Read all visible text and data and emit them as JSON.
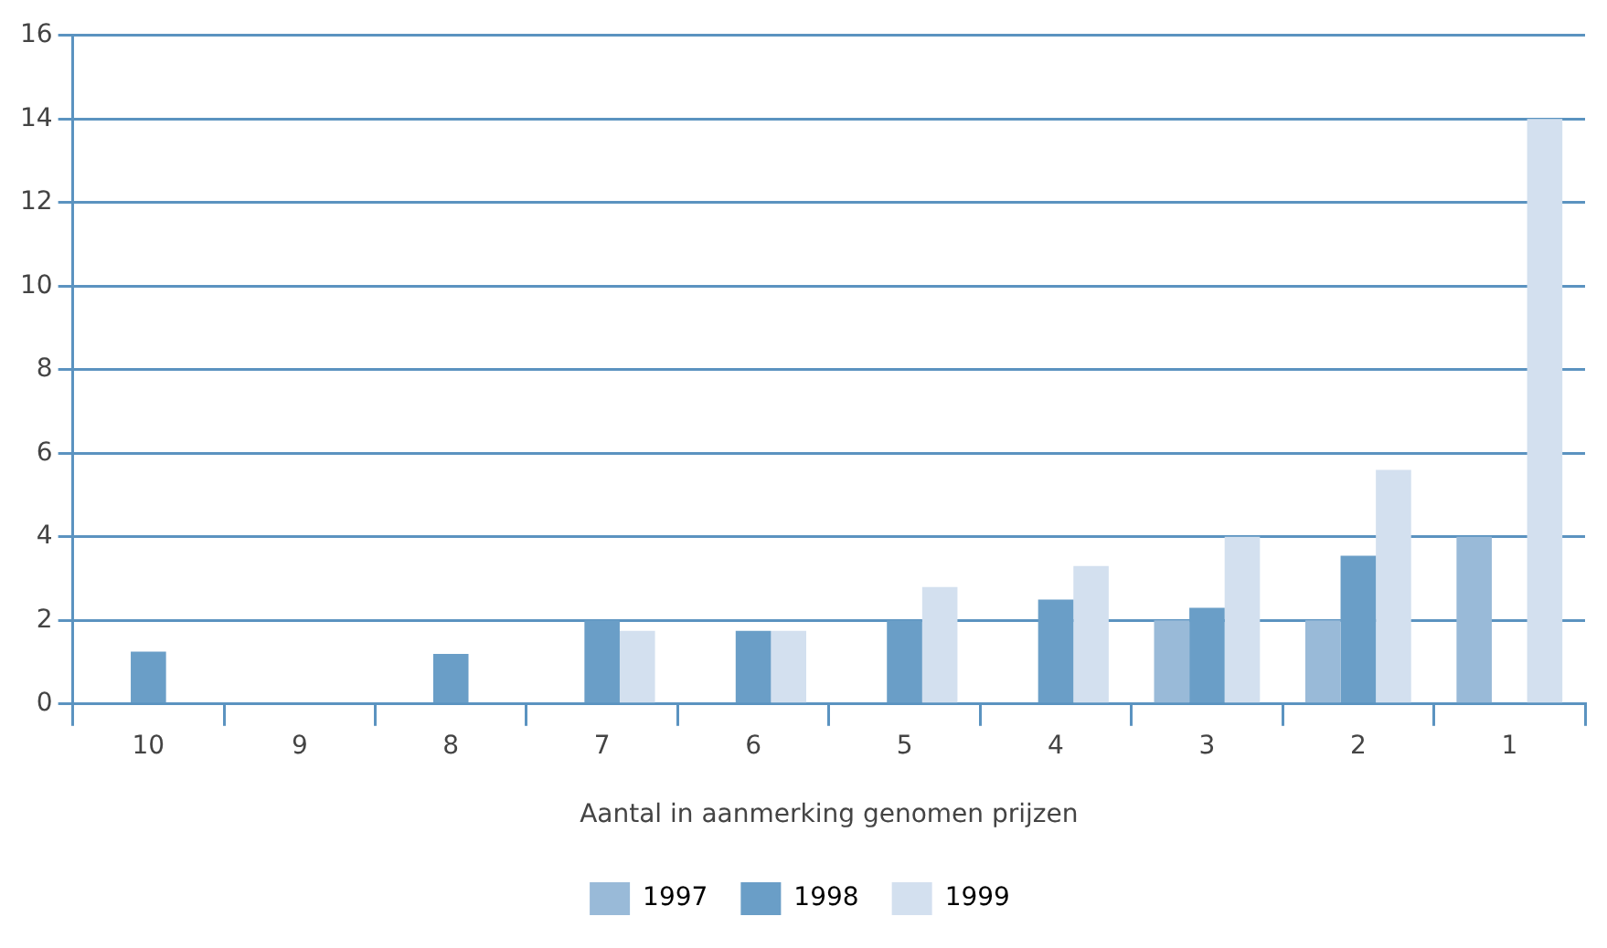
{
  "chart_data": {
    "type": "bar",
    "xlabel": "Aantal in aanmerking genomen prijzen",
    "categories": [
      "10",
      "9",
      "8",
      "7",
      "6",
      "5",
      "4",
      "3",
      "2",
      "1"
    ],
    "series": [
      {
        "name": "1997",
        "color": "#99bad8",
        "values": [
          null,
          null,
          null,
          null,
          null,
          null,
          null,
          2.0,
          2.0,
          4.0
        ]
      },
      {
        "name": "1998",
        "color": "#6a9ec7",
        "values": [
          1.25,
          null,
          1.2,
          2.0,
          1.75,
          2.0,
          2.5,
          2.3,
          3.55,
          null
        ]
      },
      {
        "name": "1999",
        "color": "#d3e0ef",
        "values": [
          null,
          null,
          null,
          1.75,
          1.75,
          2.8,
          3.3,
          4.0,
          5.6,
          14.0
        ]
      }
    ],
    "ylim": [
      0,
      16
    ],
    "yticks": [
      0,
      2,
      4,
      6,
      8,
      10,
      12,
      14,
      16
    ],
    "grid": "y",
    "legend": "bottom"
  }
}
